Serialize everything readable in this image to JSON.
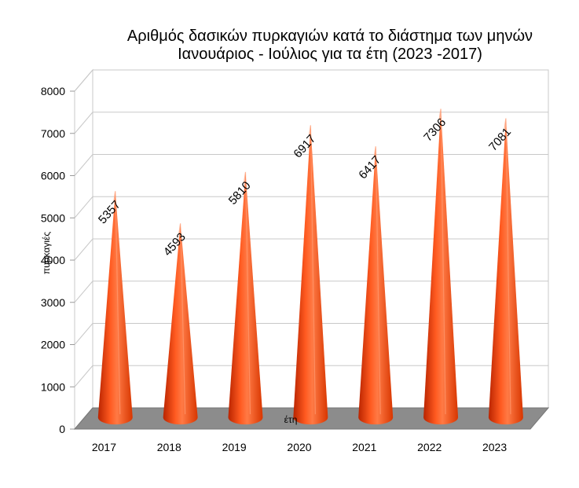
{
  "chart_data": {
    "type": "bar",
    "style": "3d-cone",
    "title_line1": "Αριθμός δασικών πυρκαγιών κατά το διάστημα των μηνών",
    "title_line2": "Ιανουάριος - Ιούλιος για  τα έτη (2023 -2017)",
    "xlabel": "έτη",
    "ylabel": "πυρκαγιές",
    "categories": [
      "2017",
      "2018",
      "2019",
      "2020",
      "2021",
      "2022",
      "2023"
    ],
    "values": [
      5357,
      4593,
      5810,
      6917,
      6417,
      7306,
      7081
    ],
    "ylim": [
      0,
      8000
    ],
    "yticks": [
      0,
      1000,
      2000,
      3000,
      4000,
      5000,
      6000,
      7000,
      8000
    ],
    "grid": true,
    "legend": "none",
    "colors": {
      "cone": "#ff4411",
      "cone_dark": "#c72a00",
      "cone_light": "#ff8a5a",
      "floor": "#8c8c8c",
      "grid": "#c8c8c8"
    }
  }
}
